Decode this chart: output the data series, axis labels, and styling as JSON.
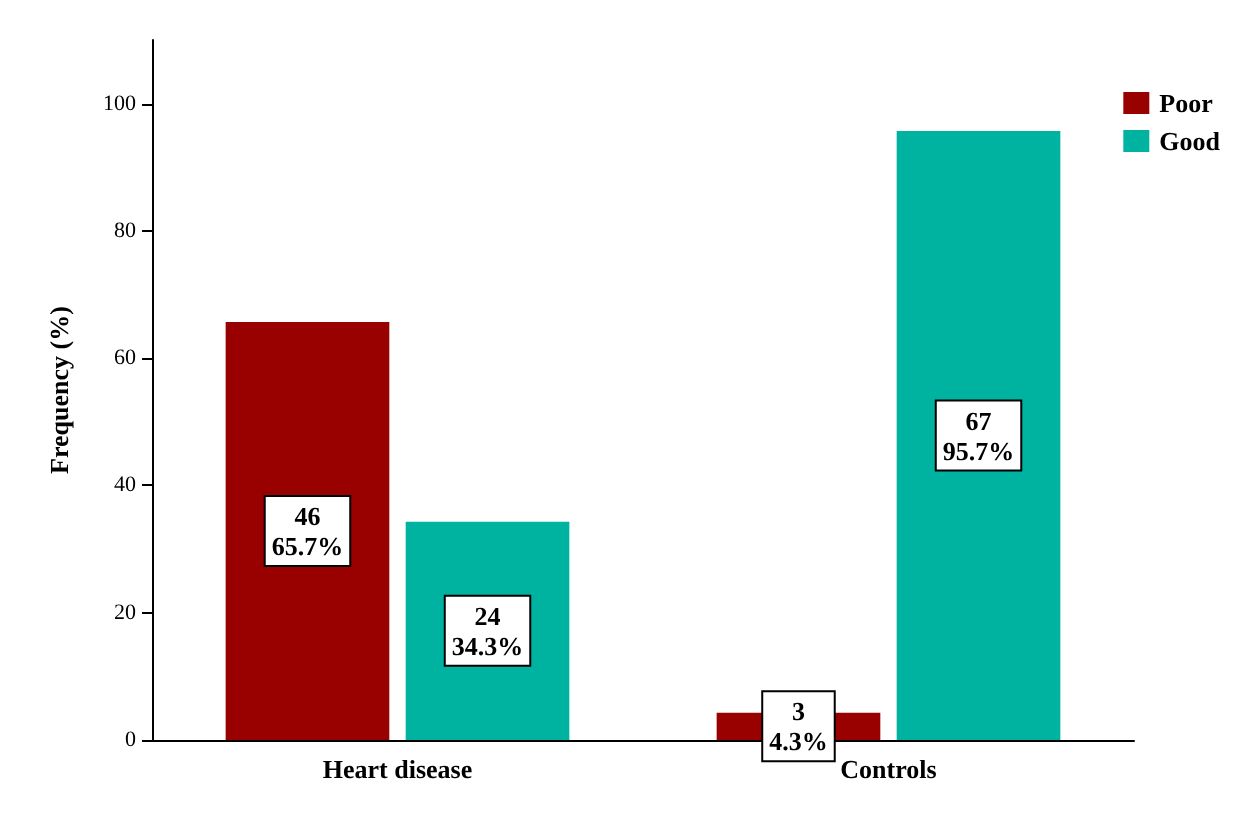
{
  "chart_data": {
    "type": "bar",
    "ylabel": "Frequency (%)",
    "categories": [
      "Heart disease",
      "Controls"
    ],
    "series": [
      {
        "name": "Poor",
        "color": "#990000",
        "values": [
          65.7,
          4.3
        ],
        "value_labels": [
          "46\n65.7%",
          "3\n4.3%"
        ]
      },
      {
        "name": "Good",
        "color": "#00b3a0",
        "values": [
          34.3,
          95.7
        ],
        "value_labels": [
          "24\n34.3%",
          "67\n95.7%"
        ]
      }
    ],
    "ylim": [
      0,
      110
    ],
    "yticks": [
      0,
      20,
      40,
      60,
      80,
      100
    ],
    "grid": false,
    "legend": "top right"
  }
}
